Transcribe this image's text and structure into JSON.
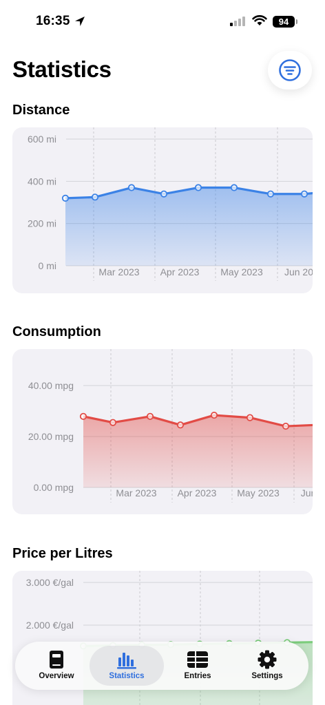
{
  "status_bar": {
    "time": "16:35",
    "battery": "94"
  },
  "header": {
    "title": "Statistics"
  },
  "colors": {
    "accent": "#2f6fde",
    "distance": "#3b82e6",
    "consumption": "#e24b45",
    "price": "#7ccd7c"
  },
  "sections": [
    {
      "title": "Distance"
    },
    {
      "title": "Consumption"
    },
    {
      "title": "Price per Litres"
    }
  ],
  "chart_data": [
    {
      "type": "area",
      "title": "Distance",
      "y_ticks": [
        "600 mi",
        "400 mi",
        "200 mi",
        "0 mi"
      ],
      "x_ticks": [
        "Mar 2023",
        "Apr 2023",
        "May 2023",
        "Jun 20"
      ],
      "ylim": [
        0,
        600
      ],
      "values": [
        320,
        325,
        370,
        340,
        370,
        370,
        340,
        340,
        345
      ],
      "grid": true
    },
    {
      "type": "area",
      "title": "Consumption",
      "y_ticks": [
        "40.00 mpg",
        "20.00 mpg",
        "0.00 mpg"
      ],
      "x_ticks": [
        "Mar 2023",
        "Apr 2023",
        "May 2023",
        "Jun"
      ],
      "ylim": [
        0,
        52
      ],
      "values": [
        29,
        26.5,
        29,
        25.5,
        29.5,
        28.5,
        25,
        25.5
      ],
      "grid": true
    },
    {
      "type": "area",
      "title": "Price per Litres",
      "y_ticks": [
        "3.000 €/gal",
        "2.000 €/gal"
      ],
      "x_ticks": [],
      "ylim": [
        0,
        3.0
      ],
      "values": [
        1.7,
        1.71,
        1.72,
        1.73,
        1.74,
        1.75,
        1.76,
        1.77,
        1.78
      ],
      "grid": true
    }
  ],
  "tab_bar": {
    "items": [
      {
        "label": "Overview",
        "icon": "overview-icon",
        "active": false
      },
      {
        "label": "Statistics",
        "icon": "statistics-icon",
        "active": true
      },
      {
        "label": "Entries",
        "icon": "entries-icon",
        "active": false
      },
      {
        "label": "Settings",
        "icon": "settings-icon",
        "active": false
      }
    ]
  }
}
